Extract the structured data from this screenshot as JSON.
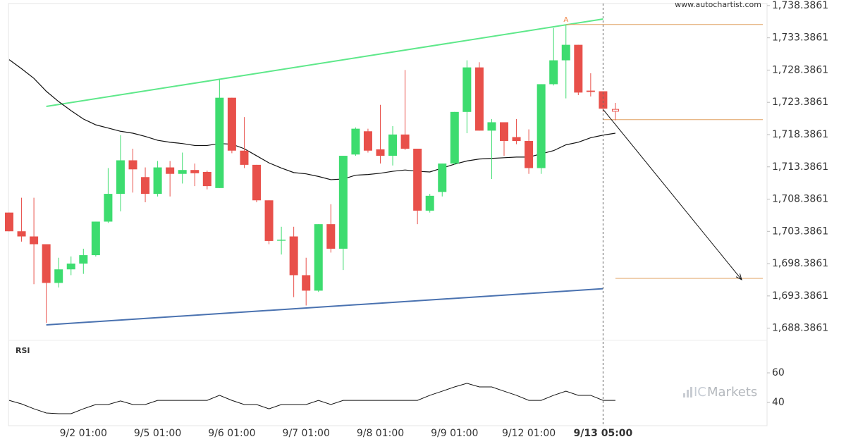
{
  "chart_data": [
    {
      "type": "candlestick",
      "watermark": "www.autochartist.com",
      "categories": [
        null,
        null,
        null,
        null,
        null,
        null,
        "9/2 01:00",
        null,
        null,
        null,
        null,
        null,
        "9/5 01:00",
        null,
        null,
        null,
        null,
        null,
        "9/6 01:00",
        null,
        null,
        null,
        null,
        null,
        "9/7 01:00",
        null,
        null,
        null,
        null,
        null,
        "9/8 01:00",
        null,
        null,
        null,
        null,
        null,
        "9/9 01:00",
        null,
        null,
        null,
        null,
        null,
        "9/12 01:00",
        null,
        null,
        null,
        null,
        null,
        "9/13 05:00",
        null
      ],
      "open": [
        1706.3,
        1703.4,
        1702.6,
        1701.4,
        1695.4,
        1697.5,
        1698.4,
        1699.7,
        1704.9,
        1709.2,
        1714.4,
        1711.8,
        1709.2,
        1713.3,
        1712.3,
        1712.9,
        1712.6,
        1710.1,
        1724.1,
        1715.9,
        1713.7,
        1708.2,
        1702.0,
        1702.6,
        1696.6,
        1694.2,
        1704.5,
        1700.7,
        1715.3,
        1718.9,
        1716.1,
        1715.1,
        1718.4,
        1716.2,
        1706.6,
        1709.5,
        1713.9,
        1721.9,
        1728.8,
        1719.0,
        1720.3,
        1718.0,
        1717.4,
        1713.2,
        1726.2,
        1729.9,
        1732.3,
        1725.2,
        1725.1,
        1722.3
      ],
      "high": [
        1706.3,
        1708.6,
        1708.6,
        1701.4,
        1699.3,
        1699.5,
        1700.7,
        1704.9,
        1713.2,
        1718.3,
        1716.2,
        1713.3,
        1714.3,
        1714.3,
        1715.6,
        1713.9,
        1712.8,
        1726.9,
        1724.1,
        1721.1,
        1713.7,
        1708.2,
        1704.1,
        1704.1,
        1699.3,
        1704.5,
        1707.6,
        1715.1,
        1719.5,
        1719.3,
        1723.0,
        1719.7,
        1728.4,
        1716.2,
        1709.2,
        1713.9,
        1721.9,
        1729.9,
        1729.6,
        1720.8,
        1720.3,
        1720.8,
        1719.2,
        1726.2,
        1734.9,
        1735.3,
        1732.3,
        1727.9,
        1725.1,
        1723.3
      ],
      "low": [
        1703.4,
        1701.8,
        1695.2,
        1689.2,
        1694.7,
        1696.6,
        1696.8,
        1699.5,
        1704.7,
        1706.5,
        1709.4,
        1707.9,
        1708.8,
        1708.8,
        1710.8,
        1710.4,
        1709.9,
        1710.1,
        1715.5,
        1713.2,
        1707.9,
        1701.4,
        1699.8,
        1693.2,
        1691.9,
        1694.0,
        1700.1,
        1697.4,
        1715.1,
        1715.6,
        1713.9,
        1713.6,
        1716.0,
        1704.5,
        1706.3,
        1708.8,
        1713.7,
        1718.6,
        1719.0,
        1711.5,
        1715.1,
        1716.9,
        1712.3,
        1712.3,
        1726.0,
        1724.0,
        1724.5,
        1724.3,
        1721.9,
        1720.6
      ],
      "close": [
        1703.4,
        1702.6,
        1701.4,
        1695.4,
        1697.5,
        1698.4,
        1699.7,
        1704.9,
        1709.2,
        1714.4,
        1713.0,
        1709.2,
        1713.3,
        1712.3,
        1712.9,
        1712.4,
        1710.4,
        1724.1,
        1715.9,
        1713.7,
        1708.2,
        1701.9,
        1702.1,
        1696.6,
        1694.2,
        1704.5,
        1700.7,
        1715.1,
        1719.3,
        1715.9,
        1715.1,
        1718.4,
        1716.2,
        1706.6,
        1708.9,
        1713.9,
        1721.9,
        1728.8,
        1719.0,
        1720.3,
        1717.4,
        1717.4,
        1713.2,
        1726.2,
        1729.9,
        1732.3,
        1724.9,
        1725.0,
        1722.4,
        1722.0
      ],
      "up_color": "#3ddc6f",
      "down_color": "#e8504a",
      "moving_average": {
        "color": "#111111",
        "values": [
          1730.0,
          1728.6,
          1727.1,
          1725.1,
          1723.5,
          1722.1,
          1720.8,
          1719.9,
          1719.4,
          1718.9,
          1718.6,
          1718.1,
          1717.5,
          1717.2,
          1717.0,
          1716.7,
          1716.7,
          1717.0,
          1716.9,
          1716.2,
          1715.1,
          1714.0,
          1713.2,
          1712.5,
          1712.3,
          1711.9,
          1711.4,
          1711.5,
          1712.1,
          1712.2,
          1712.4,
          1712.7,
          1712.9,
          1712.7,
          1712.6,
          1713.2,
          1713.8,
          1714.3,
          1714.6,
          1714.7,
          1714.8,
          1714.9,
          1714.9,
          1715.4,
          1715.9,
          1716.8,
          1717.2,
          1717.9,
          1718.3,
          1718.6
        ]
      },
      "trendlines": [
        {
          "color": "#5ee88a",
          "from": {
            "x": 3,
            "value": 1722.75
          },
          "to": {
            "x": 48,
            "value": 1736.3
          }
        },
        {
          "color": "#4a72b0",
          "from": {
            "x": 3,
            "value": 1688.9
          },
          "to": {
            "x": 48,
            "value": 1694.5
          }
        }
      ],
      "levels": [
        {
          "color": "#e0a060",
          "x": 45,
          "value": 1735.45
        },
        {
          "color": "#e0a060",
          "x": 48,
          "value": 1720.7
        },
        {
          "color": "#e0a060",
          "x": 49,
          "value": 1696.1
        }
      ],
      "forecast": {
        "color": "#111111",
        "from": {
          "x": 48,
          "value": 1722.3
        },
        "to": {
          "x": 59.2,
          "value": 1695.9
        }
      },
      "marker": {
        "label": "A",
        "color": "#f08040",
        "x": 45,
        "value": 1735.3
      },
      "ylim": [
        1686.6,
        1738.7
      ],
      "yticks": [
        {
          "value": 1738.3861,
          "label": "1,738.3861"
        },
        {
          "value": 1733.3861,
          "label": "1,733.3861"
        },
        {
          "value": 1728.3861,
          "label": "1,728.3861"
        },
        {
          "value": 1723.3861,
          "label": "1,723.3861"
        },
        {
          "value": 1718.3861,
          "label": "1,718.3861"
        },
        {
          "value": 1713.3861,
          "label": "1,713.3861"
        },
        {
          "value": 1708.3861,
          "label": "1,708.3861"
        },
        {
          "value": 1703.3861,
          "label": "1,703.3861"
        },
        {
          "value": 1698.3861,
          "label": "1,698.3861"
        },
        {
          "value": 1693.3861,
          "label": "1,693.3861"
        },
        {
          "value": 1688.3861,
          "label": "1,688.3861"
        }
      ],
      "grid": false
    },
    {
      "type": "line",
      "title": "RSI",
      "color": "#111111",
      "logo": {
        "prefix": "IC",
        "name": "Markets"
      },
      "values": [
        41.4,
        39.0,
        35.7,
        32.9,
        32.4,
        32.4,
        35.7,
        38.6,
        38.6,
        41.0,
        38.6,
        38.6,
        41.4,
        41.4,
        41.4,
        41.4,
        41.4,
        44.8,
        41.4,
        38.6,
        38.6,
        35.7,
        38.6,
        38.6,
        38.6,
        41.4,
        38.6,
        41.4,
        41.4,
        41.4,
        41.4,
        41.4,
        41.4,
        41.4,
        44.8,
        47.6,
        50.5,
        52.9,
        50.5,
        50.5,
        47.6,
        44.8,
        41.4,
        41.4,
        44.8,
        47.6,
        44.8,
        44.8,
        41.4,
        41.4
      ],
      "ylim": [
        24.3,
        78.6
      ],
      "yticks": [
        60,
        40
      ],
      "grid": false
    }
  ]
}
